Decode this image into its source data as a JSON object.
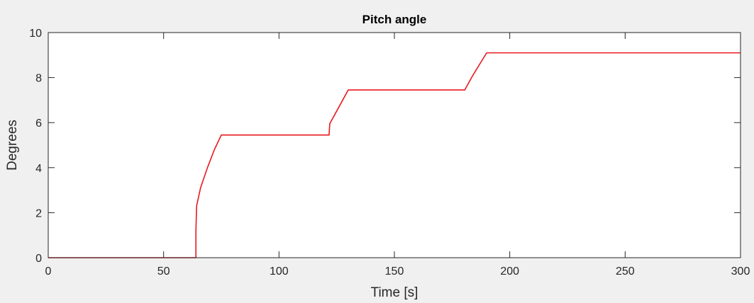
{
  "chart_data": {
    "type": "line",
    "title": "Pitch angle",
    "xlabel": "Time [s]",
    "ylabel": "Degrees",
    "xlim": [
      0,
      300
    ],
    "ylim": [
      0,
      10
    ],
    "xticks": [
      "0",
      "50",
      "100",
      "150",
      "200",
      "250",
      "300"
    ],
    "yticks": [
      "0",
      "2",
      "4",
      "6",
      "8",
      "10"
    ],
    "grid": false,
    "series": [
      {
        "color": "#e8191e",
        "x": [
          0,
          64,
          64,
          64.3,
          66,
          69,
          72,
          75,
          121.7,
          122,
          126,
          130,
          180.5,
          184,
          190,
          300
        ],
        "y": [
          0,
          0,
          1.2,
          2.3,
          3.1,
          4.0,
          4.8,
          5.45,
          5.45,
          5.95,
          6.7,
          7.45,
          7.45,
          8.1,
          9.1,
          9.1
        ]
      }
    ]
  }
}
